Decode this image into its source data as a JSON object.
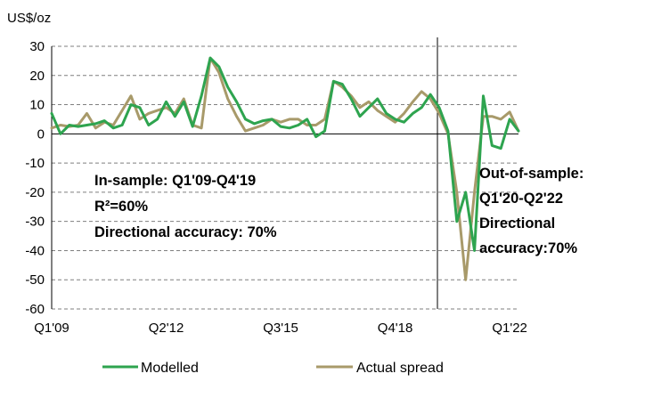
{
  "chart_data": {
    "type": "line",
    "ylabel": "US$/oz",
    "ylim": [
      -60,
      30
    ],
    "yticks": [
      30,
      20,
      10,
      0,
      -10,
      -20,
      -30,
      -40,
      -50,
      -60
    ],
    "grid": true,
    "x_tick_labels": [
      "Q1'09",
      "Q2'12",
      "Q3'15",
      "Q4'18",
      "Q1'22"
    ],
    "x_tick_index": [
      0,
      13,
      26,
      39,
      52
    ],
    "x_count": 54,
    "divider_index": 44,
    "series": [
      {
        "name": "Modelled",
        "color": "#2ea44f",
        "values": [
          7,
          0,
          3,
          2.5,
          3,
          3.5,
          4.5,
          2,
          3,
          10,
          9,
          3,
          5,
          11,
          6,
          11,
          2.5,
          13,
          26,
          23,
          16,
          11,
          5,
          3.5,
          4.5,
          5,
          2.5,
          2,
          3,
          5,
          -1,
          1,
          18,
          17,
          12,
          6,
          9,
          12,
          7,
          5,
          4,
          7,
          9,
          13.5,
          9,
          1,
          -30,
          -20,
          -40,
          13,
          -4,
          -5,
          5,
          1
        ]
      },
      {
        "name": "Actual spread",
        "color": "#a89a6a",
        "values": [
          2,
          3,
          2.5,
          3,
          7,
          2,
          4,
          3,
          8,
          13,
          5,
          7,
          8,
          9,
          7,
          12,
          3,
          2,
          26,
          21,
          12,
          6,
          1,
          2,
          3,
          5,
          4,
          5,
          5,
          3,
          3,
          5,
          18,
          16,
          13,
          9,
          11,
          8,
          6,
          4,
          7,
          11,
          14.5,
          12,
          7,
          0,
          -20,
          -50,
          -20,
          6,
          6,
          5,
          7.5,
          1
        ]
      }
    ]
  },
  "annotations": {
    "in_sample": [
      "In-sample: Q1'09-Q4'19",
      "R²=60%",
      "Directional accuracy: 70%"
    ],
    "out_of_sample": [
      "Out-of-sample:",
      "Q1'20-Q2'22",
      "Directional",
      "accuracy:70%"
    ]
  },
  "legend": {
    "placement": "bottom",
    "items": [
      "Modelled",
      "Actual spread"
    ]
  }
}
